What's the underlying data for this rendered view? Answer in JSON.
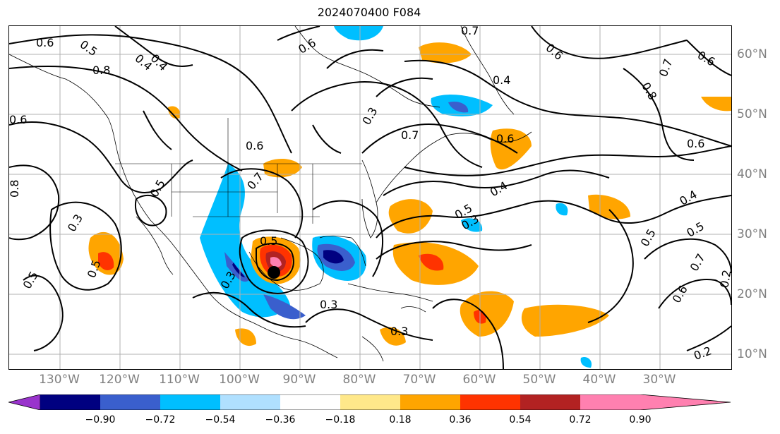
{
  "title": "2024070400 F084",
  "lon_labels": [
    "130°W",
    "120°W",
    "110°W",
    "100°W",
    "90°W",
    "80°W",
    "70°W",
    "60°W",
    "50°W",
    "40°W",
    "30°W"
  ],
  "lat_labels": [
    "60°N",
    "50°N",
    "40°N",
    "30°N",
    "20°N",
    "10°N"
  ],
  "contour_labels": [
    "0.6",
    "0.5",
    "0.4",
    "0.8",
    "0.6",
    "0.3",
    "0.7",
    "0.4",
    "0.6",
    "0.5",
    "0.3",
    "0.4",
    "0.6",
    "0.5",
    "0.3",
    "0.7",
    "0.6",
    "0.8",
    "0.6",
    "0.7",
    "0.5",
    "0.3",
    "0.5",
    "0.4",
    "0.5",
    "0.3",
    "0.5",
    "0.3",
    "0.6",
    "0.5",
    "0.6",
    "0.7",
    "0.2",
    "0.6",
    "0.7",
    "0.8",
    "0.4",
    "0.2"
  ],
  "colorbar": {
    "ticks": [
      "−0.90",
      "−0.72",
      "−0.54",
      "−0.36",
      "−0.18",
      "0.18",
      "0.36",
      "0.54",
      "0.72",
      "0.90"
    ],
    "colors": [
      "#9933cc",
      "#000080",
      "#3a5fcd",
      "#00bfff",
      "#b0e0ff",
      "#ffffff",
      "#ffe88a",
      "#ffa500",
      "#ff3300",
      "#b22222",
      "#ff80b0"
    ]
  },
  "storm_center": {
    "lon": -96,
    "lat": 24
  }
}
